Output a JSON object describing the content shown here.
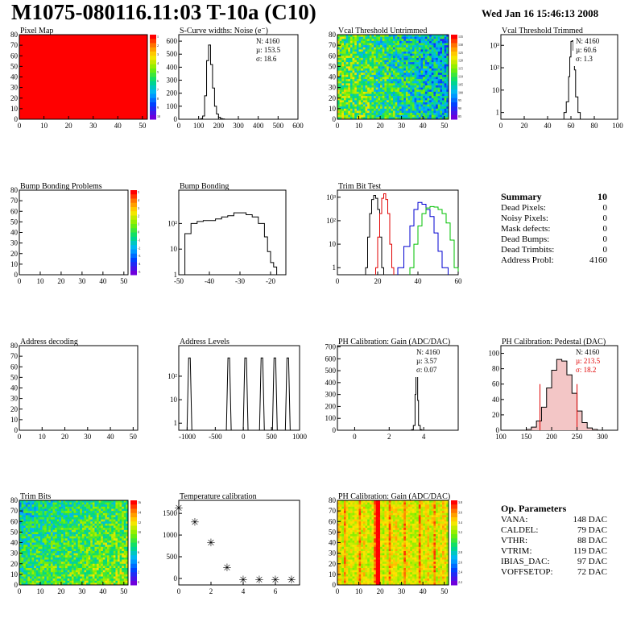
{
  "header": {
    "title": "M1075-080116.11:03 T-10a (C10)",
    "date": "Wed Jan 16 15:46:13 2008"
  },
  "chart_data": [
    {
      "id": "pixel_map",
      "type": "heatmap",
      "title": "Pixel Map",
      "xlim": [
        0,
        52
      ],
      "ylim": [
        0,
        80
      ],
      "xticks": [
        "0",
        "10",
        "20",
        "30",
        "40",
        "50"
      ],
      "yticks": [
        "0",
        "10",
        "20",
        "30",
        "40",
        "50",
        "60",
        "70",
        "80"
      ],
      "fill": "uniform",
      "cell_value": 10,
      "palette": "rainbow",
      "z_range": [
        0,
        10
      ],
      "z_ticks": [
        "1",
        "2",
        "3",
        "4",
        "5",
        "6",
        "7",
        "8",
        "9",
        "10"
      ]
    },
    {
      "id": "scurve",
      "type": "bar",
      "title": "S-Curve widths: Noise (e⁻)",
      "xlim": [
        0,
        600
      ],
      "ylim": [
        0,
        650
      ],
      "xticks": [
        "0",
        "100",
        "200",
        "300",
        "400",
        "500",
        "600"
      ],
      "yticks": [
        "0",
        "100",
        "200",
        "300",
        "400",
        "500",
        "600"
      ],
      "stats": {
        "N": "N: 4160",
        "mu": "µ: 153.5",
        "sigma": "σ: 18.6"
      },
      "x": [
        100,
        110,
        120,
        130,
        140,
        150,
        160,
        170,
        180,
        190,
        200,
        210,
        220,
        230
      ],
      "values": [
        0,
        5,
        25,
        180,
        450,
        570,
        420,
        240,
        100,
        40,
        15,
        5,
        2,
        0
      ]
    },
    {
      "id": "vcal_untrimmed",
      "type": "heatmap",
      "title": "Vcal Threshold Untrimmed",
      "xlim": [
        0,
        52
      ],
      "ylim": [
        0,
        80
      ],
      "xticks": [
        "0",
        "10",
        "20",
        "30",
        "40",
        "50"
      ],
      "yticks": [
        "0",
        "10",
        "20",
        "30",
        "40",
        "50",
        "60",
        "70",
        "80"
      ],
      "fill": "noise",
      "palette": "rainbow",
      "z_range": [
        80,
        135
      ],
      "z_ticks": [
        "135",
        "130",
        "125",
        "120",
        "115",
        "110",
        "105",
        "100",
        "95",
        "90",
        "85"
      ]
    },
    {
      "id": "vcal_trimmed",
      "type": "bar",
      "title": "Vcal Threshold Trimmed",
      "log": true,
      "xlim": [
        0,
        100
      ],
      "ylim": [
        0.5,
        3000
      ],
      "xticks": [
        "0",
        "20",
        "40",
        "60",
        "80",
        "100"
      ],
      "yticks": [
        "1",
        "10",
        "10²",
        "10³"
      ],
      "stats": {
        "N": "N: 4160",
        "mu": "µ: 60.6",
        "sigma": "σ:  1.3"
      },
      "x": [
        54,
        56,
        58,
        59,
        60,
        61,
        62,
        63,
        64,
        66
      ],
      "values": [
        1,
        3,
        40,
        300,
        1500,
        1600,
        600,
        80,
        5,
        1
      ]
    },
    {
      "id": "bump_problems",
      "type": "heatmap",
      "title": "Bump Bonding Problems",
      "xlim": [
        0,
        52
      ],
      "ylim": [
        0,
        80
      ],
      "xticks": [
        "0",
        "10",
        "20",
        "30",
        "40",
        "50"
      ],
      "yticks": [
        "0",
        "10",
        "20",
        "30",
        "40",
        "50",
        "60",
        "70",
        "80"
      ],
      "fill": "empty",
      "palette": "rainbow",
      "z_range": [
        -5,
        5
      ],
      "z_ticks": [
        "5",
        "4",
        "3",
        "2",
        "1",
        "0",
        "-1",
        "-2",
        "-3",
        "-4",
        "-5"
      ]
    },
    {
      "id": "bump_bonding",
      "type": "bar",
      "title": "Bump Bonding",
      "log": true,
      "xlim": [
        -50,
        -15
      ],
      "ylim": [
        1,
        2000
      ],
      "xticks": [
        "-50",
        "-40",
        "-30",
        "-20"
      ],
      "yticks": [
        "1",
        "10",
        "10²"
      ],
      "x": [
        -48,
        -46,
        -44,
        -42,
        -40,
        -38,
        -36,
        -34,
        -32,
        -30,
        -28,
        -26,
        -24,
        -22,
        -21,
        -20,
        -19,
        -18
      ],
      "values": [
        40,
        100,
        120,
        130,
        130,
        150,
        180,
        200,
        260,
        260,
        220,
        180,
        100,
        30,
        8,
        3,
        2,
        1
      ]
    },
    {
      "id": "trim_bits",
      "type": "line",
      "title": "Trim Bit Test",
      "log": true,
      "xlim": [
        0,
        60
      ],
      "ylim": [
        0.5,
        2000
      ],
      "xticks": [
        "0",
        "20",
        "40",
        "60"
      ],
      "yticks": [
        "1",
        "10",
        "10²",
        "10³"
      ],
      "series": [
        {
          "color": "#000000",
          "x": [
            14,
            15,
            16,
            17,
            18,
            19,
            20,
            21,
            22
          ],
          "values": [
            1,
            20,
            200,
            800,
            1200,
            900,
            300,
            20,
            1
          ]
        },
        {
          "color": "#e00000",
          "x": [
            19,
            20,
            21,
            22,
            23,
            24,
            25,
            26,
            27
          ],
          "values": [
            1,
            20,
            200,
            900,
            1400,
            800,
            200,
            10,
            1
          ]
        },
        {
          "color": "#0000d0",
          "x": [
            30,
            33,
            36,
            38,
            40,
            42,
            44,
            46,
            48,
            50,
            52
          ],
          "values": [
            1,
            8,
            60,
            300,
            600,
            500,
            300,
            150,
            30,
            5,
            1
          ]
        },
        {
          "color": "#00c000",
          "x": [
            36,
            38,
            40,
            42,
            44,
            46,
            48,
            50,
            52,
            54,
            56,
            58
          ],
          "values": [
            1,
            10,
            60,
            200,
            350,
            400,
            380,
            300,
            200,
            80,
            15,
            1
          ]
        }
      ]
    },
    {
      "id": "addr_decoding",
      "type": "heatmap",
      "title": "Address decoding",
      "xlim": [
        0,
        52
      ],
      "ylim": [
        0,
        80
      ],
      "xticks": [
        "0",
        "10",
        "20",
        "30",
        "40",
        "50"
      ],
      "yticks": [
        "0",
        "10",
        "20",
        "30",
        "40",
        "50",
        "60",
        "70",
        "80"
      ],
      "fill": "empty"
    },
    {
      "id": "addr_levels",
      "type": "bar",
      "title": "Address Levels",
      "log": true,
      "xlim": [
        -1150,
        1000
      ],
      "ylim": [
        0.5,
        2000
      ],
      "xticks": [
        "-1000",
        "-500",
        "0",
        "500",
        "1000"
      ],
      "yticks": [
        "1",
        "10",
        "10²"
      ],
      "peaks": [
        -960,
        -260,
        40,
        330,
        560,
        790
      ],
      "peak_values": [
        600,
        600,
        600,
        600,
        600,
        600
      ]
    },
    {
      "id": "ph_gain",
      "type": "bar",
      "title": "PH Calibration: Gain (ADC/DAC)",
      "xlim": [
        -1,
        6
      ],
      "ylim": [
        0,
        710
      ],
      "xticks": [
        "0",
        "2",
        "4"
      ],
      "yticks": [
        "0",
        "100",
        "200",
        "300",
        "400",
        "500",
        "600",
        "700"
      ],
      "stats": {
        "N": "N: 4160",
        "mu": "µ: 3.57",
        "sigma": "σ: 0.07"
      },
      "x": [
        3.2,
        3.3,
        3.4,
        3.5,
        3.55,
        3.6,
        3.65,
        3.7,
        3.8,
        3.9
      ],
      "values": [
        0,
        5,
        40,
        300,
        680,
        620,
        250,
        40,
        5,
        0
      ]
    },
    {
      "id": "ph_pedestal",
      "type": "bar",
      "title": "PH Calibration: Pedestal (DAC)",
      "xlim": [
        100,
        330
      ],
      "ylim": [
        0,
        110
      ],
      "xticks": [
        "100",
        "150",
        "200",
        "250",
        "300"
      ],
      "yticks": [
        "0",
        "20",
        "40",
        "60",
        "80",
        "100"
      ],
      "stats": {
        "N": "N: 4160",
        "mu": "µ: 213.5",
        "sigma": "σ: 18.2"
      },
      "cut_lines": [
        177,
        250
      ],
      "x": [
        150,
        160,
        170,
        180,
        190,
        200,
        210,
        220,
        230,
        240,
        250,
        260,
        270,
        280
      ],
      "values": [
        1,
        4,
        12,
        30,
        55,
        78,
        92,
        90,
        72,
        48,
        25,
        10,
        3,
        1
      ]
    },
    {
      "id": "trim_bits_map",
      "type": "heatmap",
      "title": "Trim Bits",
      "xlim": [
        0,
        52
      ],
      "ylim": [
        0,
        80
      ],
      "xticks": [
        "0",
        "10",
        "20",
        "30",
        "40",
        "50"
      ],
      "yticks": [
        "0",
        "10",
        "20",
        "30",
        "40",
        "50",
        "60",
        "70",
        "80"
      ],
      "fill": "noise_gradient",
      "palette": "rainbow",
      "z_range": [
        0,
        16
      ],
      "z_ticks": [
        "16",
        "14",
        "12",
        "10",
        "8",
        "6",
        "4",
        "2",
        "0"
      ]
    },
    {
      "id": "temperature",
      "type": "scatter",
      "title": "Temperature calibration",
      "xlim": [
        0,
        7.5
      ],
      "ylim": [
        -150,
        1800
      ],
      "xticks": [
        "0",
        "2",
        "4",
        "6"
      ],
      "yticks": [
        "0",
        "500",
        "1000",
        "1500"
      ],
      "x": [
        0,
        1,
        2,
        3,
        4,
        5,
        6,
        7
      ],
      "values": [
        1650,
        1330,
        850,
        280,
        0,
        0,
        0,
        0
      ]
    },
    {
      "id": "ph_gain_map",
      "type": "heatmap",
      "title": "PH Calibration: Gain (ADC/DAC)",
      "xlim": [
        0,
        52
      ],
      "ylim": [
        0,
        80
      ],
      "xticks": [
        "0",
        "10",
        "20",
        "30",
        "40",
        "50"
      ],
      "yticks": [
        "0",
        "10",
        "20",
        "30",
        "40",
        "50",
        "60",
        "70",
        "80"
      ],
      "fill": "columns",
      "palette": "rainbow",
      "z_range": [
        2,
        4
      ],
      "z_ticks": [
        "3.8",
        "3.6",
        "3.4",
        "3.2",
        "3",
        "2.8",
        "2.6",
        "2.4",
        "2.2"
      ]
    }
  ],
  "summary": {
    "title": "Summary",
    "value": "10",
    "rows": [
      [
        "Dead Pixels:",
        "0"
      ],
      [
        "Noisy Pixels:",
        "0"
      ],
      [
        "Mask defects:",
        "0"
      ],
      [
        "Dead Bumps:",
        "0"
      ],
      [
        "Dead Trimbits:",
        "0"
      ],
      [
        "Address Probl:",
        "4160"
      ]
    ]
  },
  "op_params": {
    "title": "Op. Parameters",
    "rows": [
      [
        "VANA:",
        "148 DAC"
      ],
      [
        "CALDEL:",
        "79 DAC"
      ],
      [
        "VTHR:",
        "88 DAC"
      ],
      [
        "VTRIM:",
        "119 DAC"
      ],
      [
        "IBIAS_DAC:",
        "97 DAC"
      ],
      [
        "VOFFSETOP:",
        "72 DAC"
      ]
    ]
  }
}
